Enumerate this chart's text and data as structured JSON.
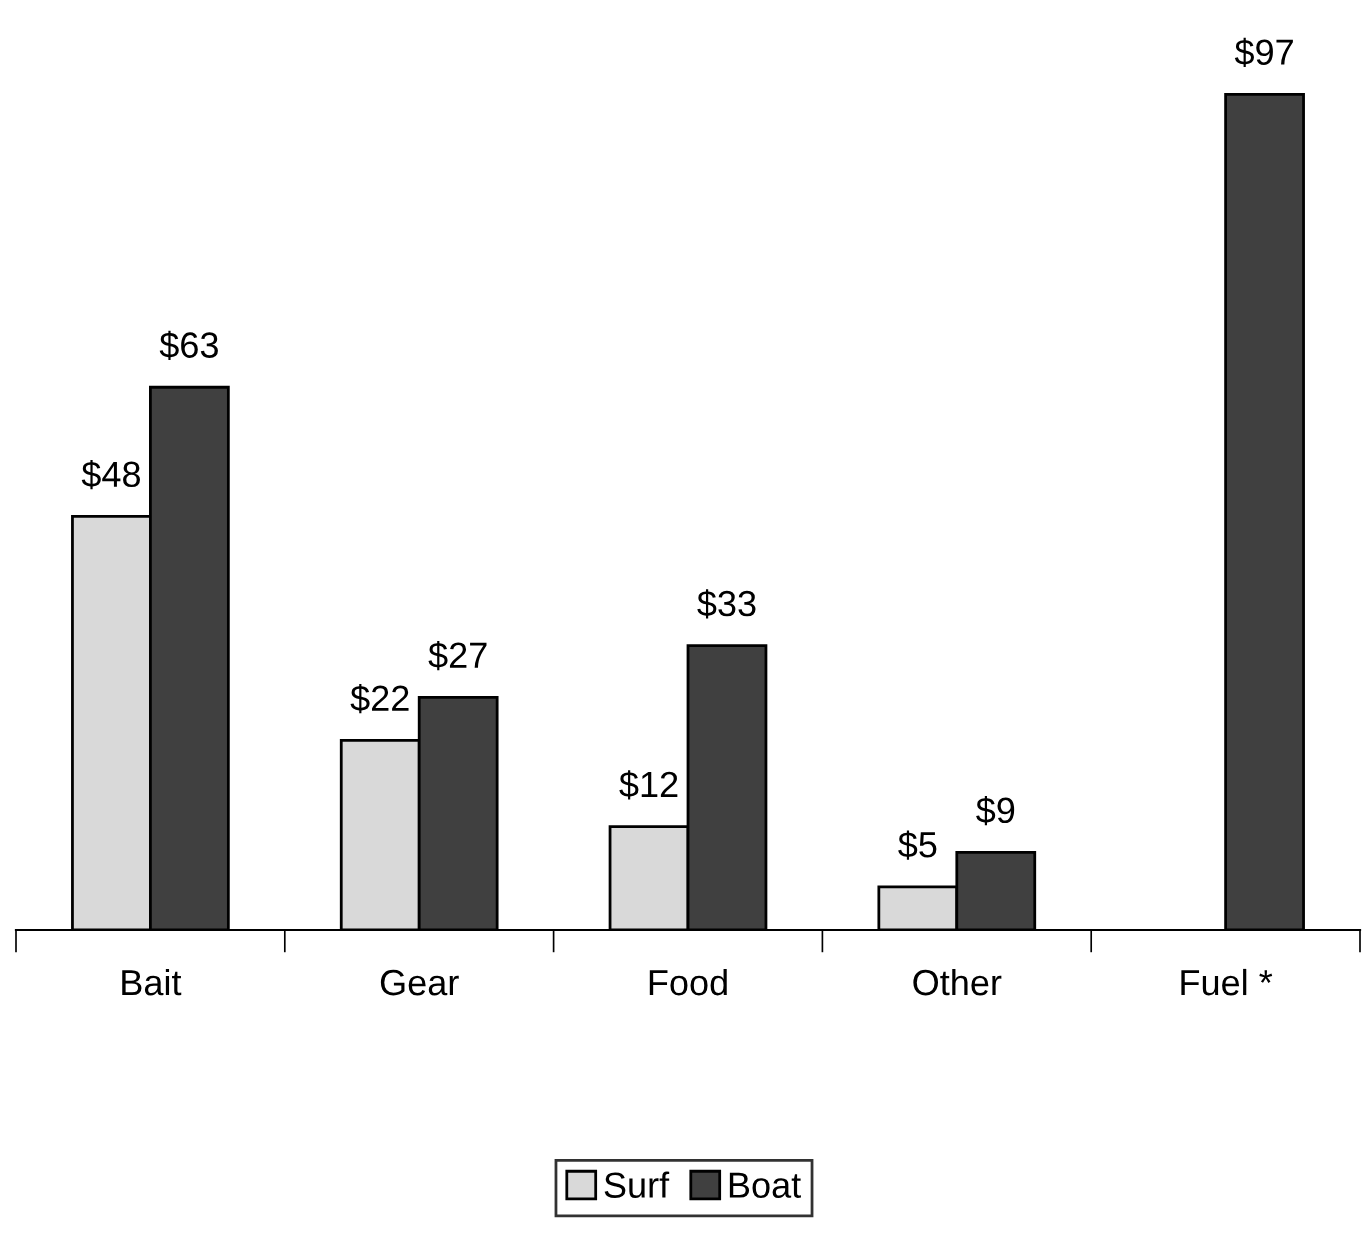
{
  "chart_data": {
    "type": "bar",
    "categories": [
      "Bait",
      "Gear",
      "Food",
      "Other",
      "Fuel *"
    ],
    "series": [
      {
        "name": "Surf",
        "color": "#d9d9d9",
        "values": [
          48,
          22,
          12,
          5,
          null
        ],
        "value_labels": [
          "$48",
          "$22",
          "$12",
          "$5",
          null
        ]
      },
      {
        "name": "Boat",
        "color": "#404040",
        "values": [
          63,
          27,
          33,
          9,
          97
        ],
        "value_labels": [
          "$63",
          "$27",
          "$33",
          "$9",
          "$97"
        ]
      }
    ],
    "grid": false,
    "legend": "bottom"
  }
}
